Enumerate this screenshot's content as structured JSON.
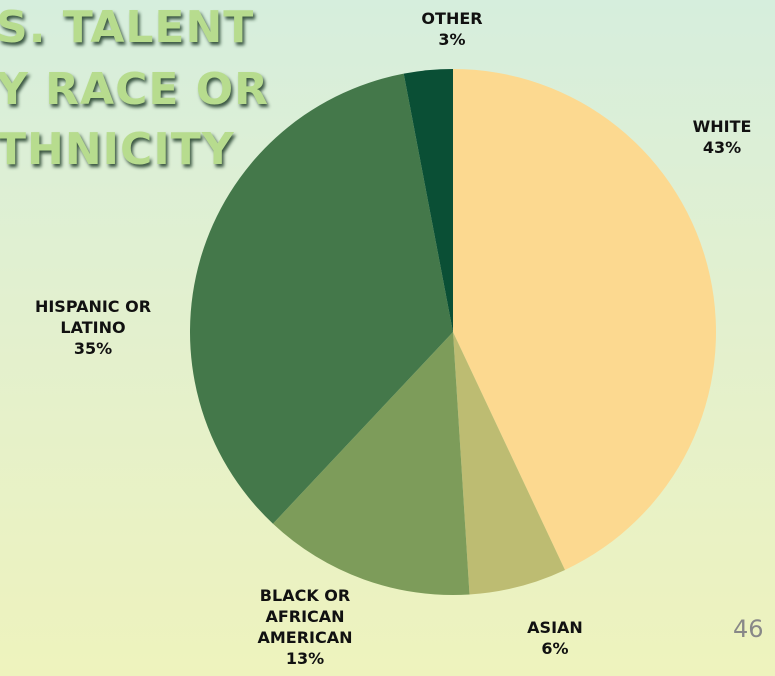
{
  "chart_data": {
    "type": "pie",
    "title_lines": [
      "S. TALENT",
      "Y RACE OR",
      "THNICITY"
    ],
    "categories": [
      "WHITE",
      "ASIAN",
      "BLACK OR AFRICAN AMERICAN",
      "HISPANIC OR LATINO",
      "OTHER"
    ],
    "values": [
      43,
      6,
      13,
      35,
      3
    ],
    "value_labels": [
      "43%",
      "6%",
      "13%",
      "35%",
      "3%"
    ],
    "colors": [
      "#fcd990",
      "#bdbc72",
      "#7d9c5a",
      "#44784a",
      "#0a4f35"
    ]
  },
  "page_number": "46"
}
